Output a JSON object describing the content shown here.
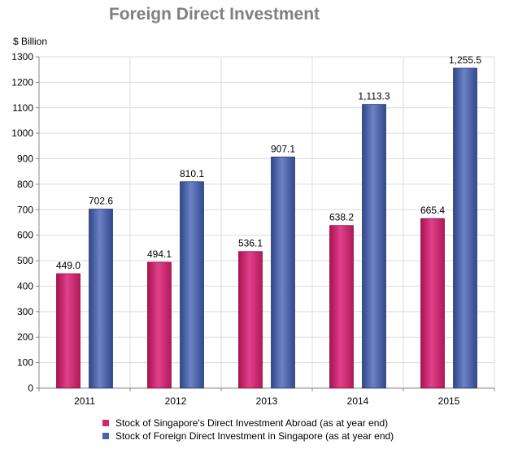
{
  "title": "Foreign Direct Investment",
  "ylabel": "$ Billion",
  "chart_data": {
    "type": "bar",
    "title": "Foreign Direct Investment",
    "xlabel": "",
    "ylabel": "$ Billion",
    "ylim": [
      0,
      1300
    ],
    "yticks": [
      0,
      100,
      200,
      300,
      400,
      500,
      600,
      700,
      800,
      900,
      1000,
      1100,
      1200,
      1300
    ],
    "grid": true,
    "legend_position": "bottom",
    "categories": [
      "2011",
      "2012",
      "2013",
      "2014",
      "2015"
    ],
    "series": [
      {
        "name": "Stock of Singapore's Direct Investment Abroad (as at year end)",
        "color": "#d4266f",
        "values": [
          449.0,
          494.1,
          536.1,
          638.2,
          665.4
        ],
        "labels": [
          "449.0",
          "494.1",
          "536.1",
          "638.2",
          "665.4"
        ]
      },
      {
        "name": "Stock of Foreign Direct Investment in Singapore (as at year end)",
        "color": "#4a62a6",
        "values": [
          702.6,
          810.1,
          907.1,
          1113.3,
          1255.5
        ],
        "labels": [
          "702.6",
          "810.1",
          "907.1",
          "1,113.3",
          "1,255.5"
        ]
      }
    ]
  }
}
